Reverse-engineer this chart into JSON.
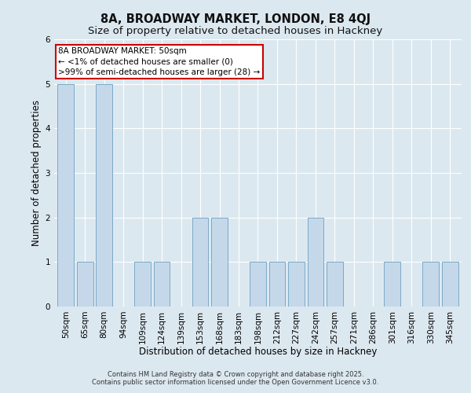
{
  "title_line1": "8A, BROADWAY MARKET, LONDON, E8 4QJ",
  "title_line2": "Size of property relative to detached houses in Hackney",
  "xlabel": "Distribution of detached houses by size in Hackney",
  "ylabel": "Number of detached properties",
  "categories": [
    "50sqm",
    "65sqm",
    "80sqm",
    "94sqm",
    "109sqm",
    "124sqm",
    "139sqm",
    "153sqm",
    "168sqm",
    "183sqm",
    "198sqm",
    "212sqm",
    "227sqm",
    "242sqm",
    "257sqm",
    "271sqm",
    "286sqm",
    "301sqm",
    "316sqm",
    "330sqm",
    "345sqm"
  ],
  "values": [
    5,
    1,
    5,
    0,
    1,
    1,
    0,
    2,
    2,
    0,
    1,
    1,
    1,
    2,
    1,
    0,
    0,
    1,
    0,
    1,
    1
  ],
  "bar_color": "#c5d8ea",
  "bar_edge_color": "#7aaac8",
  "ylim": [
    0,
    6
  ],
  "yticks": [
    0,
    1,
    2,
    3,
    4,
    5,
    6
  ],
  "annotation_line1": "8A BROADWAY MARKET: 50sqm",
  "annotation_line2": "← <1% of detached houses are smaller (0)",
  "annotation_line3": ">99% of semi-detached houses are larger (28) →",
  "annotation_box_color": "#ffffff",
  "annotation_box_edge_color": "#cc0000",
  "bg_color": "#dce8f0",
  "plot_bg_color": "#dce8f0",
  "grid_color": "#ffffff",
  "footer_line1": "Contains HM Land Registry data © Crown copyright and database right 2025.",
  "footer_line2": "Contains public sector information licensed under the Open Government Licence v3.0.",
  "title_fontsize": 10.5,
  "subtitle_fontsize": 9.5,
  "annotation_fontsize": 7.5,
  "axis_label_fontsize": 8.5,
  "tick_fontsize": 7.5,
  "footer_fontsize": 6.0
}
